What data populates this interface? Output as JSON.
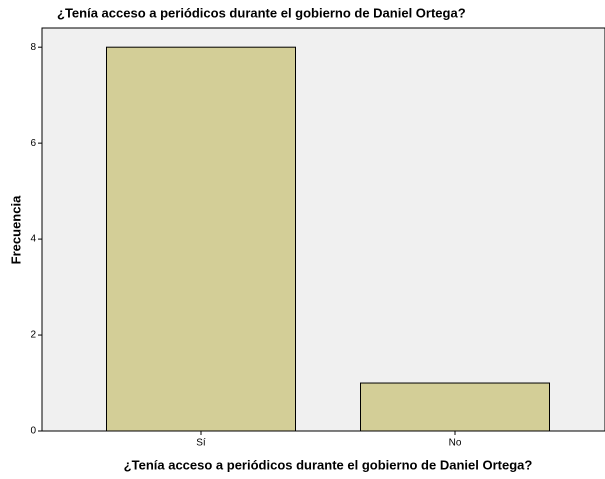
{
  "chart_data": {
    "type": "bar",
    "title": "¿Tenía acceso a periódicos durante el gobierno de Daniel Ortega?",
    "x_label": "¿Tenía acceso a periódicos durante el gobierno de Daniel Ortega?",
    "y_label": "Frecuencia",
    "categories": [
      "Sí",
      "No"
    ],
    "values": [
      8,
      1
    ],
    "color": "#d3ce97",
    "ylim": [
      0,
      8.4
    ],
    "yticks": [
      0,
      2,
      4,
      6,
      8
    ],
    "grid": false
  }
}
